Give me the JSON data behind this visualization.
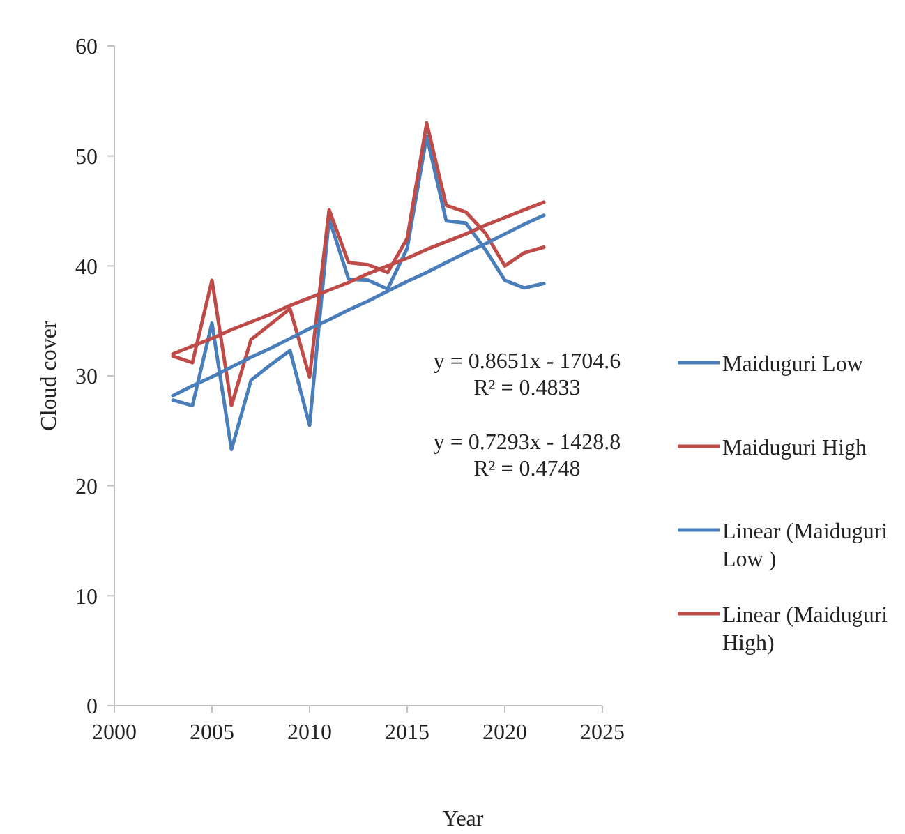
{
  "chart_data": {
    "type": "line",
    "xlabel": "Year",
    "ylabel": "Cloud cover",
    "x": [
      2003,
      2004,
      2005,
      2006,
      2007,
      2008,
      2009,
      2010,
      2011,
      2012,
      2013,
      2014,
      2015,
      2016,
      2017,
      2018,
      2019,
      2020,
      2021,
      2022
    ],
    "series": [
      {
        "name": "Maiduguri Low",
        "color": "#4a7ebb",
        "values": [
          27.8,
          27.3,
          34.8,
          23.3,
          29.6,
          31.0,
          32.3,
          25.5,
          44.3,
          38.8,
          38.7,
          37.9,
          41.6,
          51.8,
          44.1,
          43.9,
          41.5,
          38.7,
          38.0,
          38.4
        ]
      },
      {
        "name": "Maiduguri High",
        "color": "#be4b48",
        "values": [
          31.8,
          31.2,
          38.7,
          27.3,
          33.3,
          34.7,
          36.1,
          29.9,
          45.1,
          40.3,
          40.1,
          39.4,
          42.5,
          53.0,
          45.5,
          44.9,
          43.0,
          40.0,
          41.2,
          41.7
        ]
      },
      {
        "name": "Linear (Maiduguri Low )",
        "color": "#4a7ebb",
        "values": [
          28.2,
          29.1,
          29.9,
          30.8,
          31.7,
          32.5,
          33.4,
          34.3,
          35.1,
          36.0,
          36.8,
          37.7,
          38.6,
          39.4,
          40.3,
          41.2,
          42.0,
          42.9,
          43.8,
          44.6
        ]
      },
      {
        "name": "Linear (Maiduguri High)",
        "color": "#be4b48",
        "values": [
          32.0,
          32.7,
          33.4,
          34.2,
          34.9,
          35.6,
          36.4,
          37.1,
          37.8,
          38.5,
          39.3,
          40.0,
          40.7,
          41.5,
          42.2,
          42.9,
          43.7,
          44.4,
          45.1,
          45.8
        ]
      }
    ],
    "xlim": [
      2000,
      2025
    ],
    "xticks": [
      2000,
      2005,
      2010,
      2015,
      2020,
      2025
    ],
    "ylim": [
      0,
      60
    ],
    "yticks": [
      0,
      10,
      20,
      30,
      40,
      50,
      60
    ],
    "grid": false,
    "legend": "right",
    "marker": "none",
    "line_style": "solid",
    "annotations": [
      "y = 0.8651x - 1704.6\nR² = 0.4833",
      "y = 0.7293x - 1428.8\nR² = 0.4748"
    ]
  }
}
